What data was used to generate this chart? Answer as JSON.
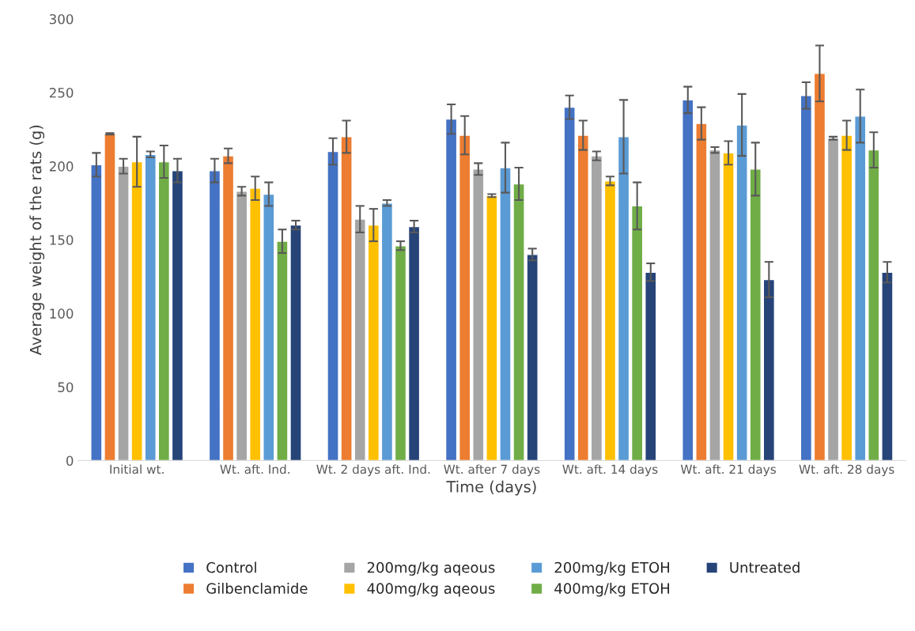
{
  "chart_data": {
    "type": "bar",
    "xlabel": "Time (days)",
    "ylabel": "Average weight of the rats (g)",
    "categories": [
      "Initial wt.",
      "Wt. aft. Ind.",
      "Wt. 2 days aft. Ind.",
      "Wt. after 7 days",
      "Wt. aft. 14 days",
      "Wt. aft. 21 days",
      "Wt. aft. 28 days"
    ],
    "series": [
      {
        "name": "Control",
        "color": "#4472c4",
        "values": [
          201,
          197,
          210,
          232,
          240,
          245,
          248
        ],
        "errors": [
          8,
          8,
          9,
          10,
          8,
          9,
          9
        ]
      },
      {
        "name": "Gilbenclamide",
        "color": "#ed7d31",
        "values": [
          222,
          207,
          220,
          221,
          221,
          229,
          263
        ],
        "errors": [
          0.5,
          5,
          11,
          13,
          10,
          11,
          19
        ]
      },
      {
        "name": "200mg/kg aqeous",
        "color": "#a5a5a5",
        "values": [
          200,
          183,
          164,
          198,
          207,
          211,
          219
        ],
        "errors": [
          5,
          3,
          9,
          4,
          3,
          2,
          1
        ]
      },
      {
        "name": "400mg/kg aqeous",
        "color": "#ffc000",
        "values": [
          203,
          185,
          160,
          180,
          190,
          209,
          221
        ],
        "errors": [
          17,
          8,
          11,
          1,
          3,
          8,
          10
        ]
      },
      {
        "name": "200mg/kg ETOH",
        "color": "#5b9bd5",
        "values": [
          208,
          181,
          175,
          199,
          220,
          228,
          234
        ],
        "errors": [
          2,
          8,
          2,
          17,
          25,
          21,
          18
        ]
      },
      {
        "name": "400mg/kg ETOH",
        "color": "#70ad47",
        "values": [
          203,
          149,
          146,
          188,
          173,
          198,
          211
        ],
        "errors": [
          11,
          8,
          3,
          11,
          16,
          18,
          12
        ]
      },
      {
        "name": "Untreated",
        "color": "#264478",
        "values": [
          197,
          160,
          159,
          140,
          128,
          123,
          128
        ],
        "errors": [
          8,
          3,
          4,
          4,
          6,
          12,
          7
        ]
      }
    ],
    "ylim": [
      0,
      300
    ],
    "yticks": [
      0,
      50,
      100,
      150,
      200,
      250,
      300
    ],
    "grid": false,
    "legend": "bottom"
  }
}
